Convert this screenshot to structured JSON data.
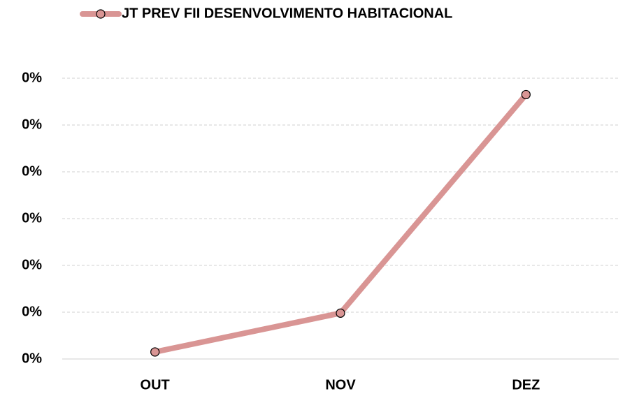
{
  "chart_data": {
    "type": "line",
    "categories": [
      "OUT",
      "NOV",
      "DEZ"
    ],
    "series": [
      {
        "name": "JT PREV FII DESENVOLVIMENTO HABITACIONAL",
        "color": "#d99594",
        "values": [
          0.00015,
          0.00098,
          0.00565
        ]
      }
    ],
    "ylim": [
      0,
      0.006
    ],
    "yticks": [
      {
        "value": 0,
        "label": "0%"
      },
      {
        "value": 0.001,
        "label": "0%"
      },
      {
        "value": 0.002,
        "label": "0%"
      },
      {
        "value": 0.003,
        "label": "0%"
      },
      {
        "value": 0.004,
        "label": "0%"
      },
      {
        "value": 0.005,
        "label": "0%"
      },
      {
        "value": 0.006,
        "label": "0%"
      }
    ],
    "grid": true,
    "legend": "top"
  }
}
